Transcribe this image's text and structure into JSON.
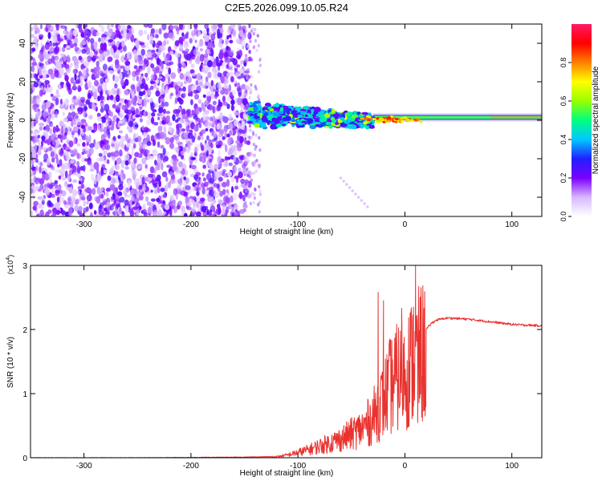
{
  "figure": {
    "title": "C2E5.2026.099.10.05.R24"
  },
  "chart_data": [
    {
      "type": "heatmap",
      "panel": "spectrogram",
      "xlabel": "Height of straight line (km)",
      "ylabel": "Frequency (Hz)",
      "xlim": [
        -350,
        128
      ],
      "ylim": [
        -50,
        50
      ],
      "xticks": [
        -300,
        -200,
        -100,
        0,
        100
      ],
      "xtick_labels": [
        "-300",
        "-200",
        "-100",
        "0",
        "100"
      ],
      "yticks": [
        -40,
        -20,
        0,
        20,
        40
      ],
      "ytick_labels": [
        "-40",
        "-20",
        "0",
        "20",
        "40"
      ],
      "colorbar": {
        "label": "Normalized spectral amplitude",
        "range": [
          0,
          1
        ],
        "ticks": [
          0.0,
          0.2,
          0.4,
          0.6,
          0.8
        ],
        "tick_labels": [
          "0.0",
          "0.2",
          "0.4",
          "0.6",
          "0.8"
        ],
        "colors": [
          "#ffffff",
          "#d7b8ff",
          "#7a00ff",
          "#2020ff",
          "#00c8ff",
          "#00ff80",
          "#9aff00",
          "#ffff00",
          "#ff8000",
          "#ff0000",
          "#ff1a66"
        ]
      },
      "regions": [
        {
          "name": "noise",
          "x": [
            -350,
            -145
          ],
          "freq": [
            -50,
            50
          ],
          "amplitude": [
            0.05,
            0.25
          ]
        },
        {
          "name": "signal-onset",
          "x": [
            -145,
            -30
          ],
          "freq_center": [
            3,
            0
          ],
          "freq_spread": [
            7,
            4
          ],
          "amplitude": [
            0.2,
            0.5
          ]
        },
        {
          "name": "tail",
          "x": [
            -60,
            -35
          ],
          "freq": [
            -30,
            -45
          ]
        },
        {
          "name": "carrier",
          "x": [
            -30,
            128
          ],
          "freq_center": [
            1.5,
            1.5
          ],
          "amplitude": [
            0.5,
            0.8
          ]
        }
      ]
    },
    {
      "type": "line",
      "panel": "snr",
      "xlabel": "Height of straight line (km)",
      "ylabel": "SNR (10 * v/v)",
      "yscale_label": "(x10",
      "yscale_exponent": "4",
      "xlim": [
        -350,
        128
      ],
      "ylim": [
        0,
        3
      ],
      "xticks": [
        -300,
        -200,
        -100,
        0,
        100
      ],
      "xtick_labels": [
        "-300",
        "-200",
        "-100",
        "0",
        "100"
      ],
      "yticks": [
        0,
        1,
        2,
        3
      ],
      "ytick_labels": [
        "0",
        "1",
        "2",
        "3"
      ],
      "color": "#e8322e",
      "series": [
        {
          "name": "SNR",
          "x": [
            -350,
            -250,
            -150,
            -120,
            -110,
            -100,
            -90,
            -80,
            -70,
            -60,
            -50,
            -40,
            -30,
            -25,
            -20,
            -15,
            -10,
            -5,
            0,
            5,
            10,
            15,
            20,
            25,
            30,
            40,
            50,
            60,
            70,
            80,
            90,
            100,
            110,
            128
          ],
          "y": [
            0.0,
            0.0,
            0.01,
            0.02,
            0.05,
            0.1,
            0.15,
            0.22,
            0.28,
            0.35,
            0.45,
            0.55,
            0.75,
            0.95,
            1.1,
            1.3,
            1.45,
            1.55,
            1.6,
            1.75,
            1.85,
            1.95,
            2.0,
            2.1,
            2.15,
            2.18,
            2.17,
            2.16,
            2.14,
            2.12,
            2.1,
            2.08,
            2.07,
            2.06
          ],
          "spikes": [
            {
              "x": -25,
              "y": 2.58
            },
            {
              "x": -20,
              "y": 2.45
            },
            {
              "x": -14,
              "y": 1.85
            },
            {
              "x": -3,
              "y": 2.33
            },
            {
              "x": 8,
              "y": 2.35
            },
            {
              "x": 10,
              "y": 3.0
            },
            {
              "x": 12,
              "y": 0.55
            }
          ]
        }
      ]
    }
  ]
}
